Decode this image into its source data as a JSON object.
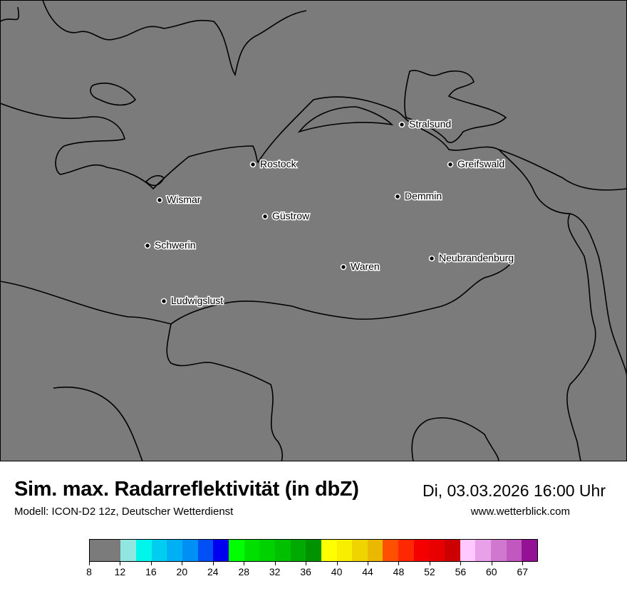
{
  "map": {
    "background_color": "#7b7b7b",
    "cities": [
      {
        "name": "Stralsund"
      },
      {
        "name": "Rostock"
      },
      {
        "name": "Greifswald"
      },
      {
        "name": "Demmin"
      },
      {
        "name": "Wismar"
      },
      {
        "name": "Güstrow"
      },
      {
        "name": "Schwerin"
      },
      {
        "name": "Neubrandenburg"
      },
      {
        "name": "Waren"
      },
      {
        "name": "Ludwigslust"
      }
    ]
  },
  "footer": {
    "title": "Sim. max. Radarreflektivität (in dbZ)",
    "datetime": "Di, 03.03.2026 16:00 Uhr",
    "model": "Modell: ICON-D2 12z, Deutscher Wetterdienst",
    "website": "www.wetterblick.com"
  },
  "colorbar": {
    "unit": "dbZ",
    "colors": [
      "#7b7b7b",
      "#90e6e0",
      "#00f5eb",
      "#00cdf0",
      "#00b0f5",
      "#0090f5",
      "#0050f5",
      "#0000f0",
      "#00ff00",
      "#00e000",
      "#00d200",
      "#00c000",
      "#00aa00",
      "#009200",
      "#ffff00",
      "#f8ee00",
      "#f0d400",
      "#ebb800",
      "#ff5000",
      "#ff2800",
      "#f50000",
      "#e80000",
      "#cc0000",
      "#ffc8ff",
      "#e8a0e8",
      "#d078d0",
      "#c058c0",
      "#941094"
    ],
    "tick_labels": [
      "8",
      "12",
      "16",
      "20",
      "24",
      "28",
      "32",
      "36",
      "40",
      "44",
      "48",
      "52",
      "56",
      "60",
      "67"
    ]
  }
}
